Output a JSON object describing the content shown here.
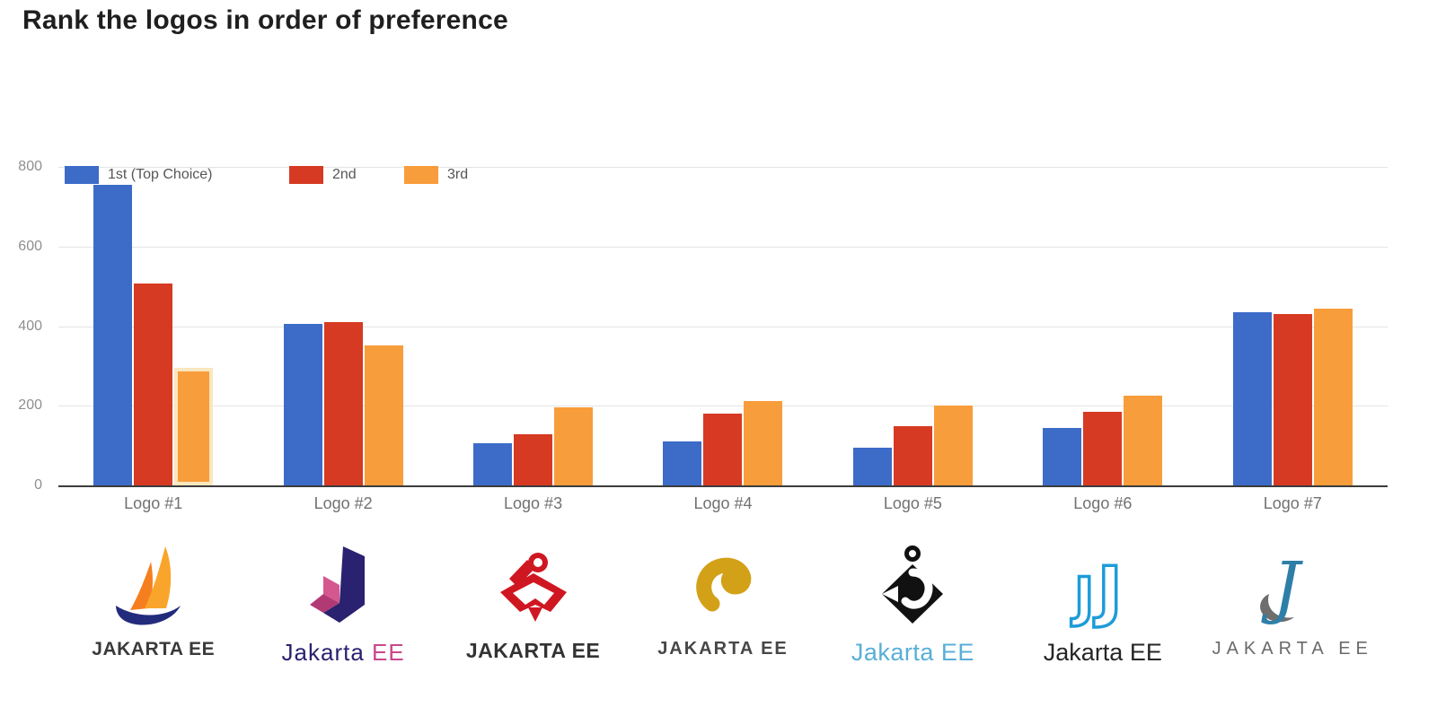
{
  "title": "Rank the logos in order of preference",
  "chart_data": {
    "type": "bar",
    "categories": [
      "Logo #1",
      "Logo #2",
      "Logo #3",
      "Logo #4",
      "Logo #5",
      "Logo #6",
      "Logo #7"
    ],
    "series": [
      {
        "name": "1st (Top Choice)",
        "color": "#3c6cc8",
        "values": [
          755,
          405,
          105,
          110,
          95,
          145,
          435
        ]
      },
      {
        "name": "2nd",
        "color": "#d63a22",
        "values": [
          508,
          410,
          128,
          180,
          148,
          185,
          430
        ]
      },
      {
        "name": "3rd",
        "color": "#f89d3b",
        "values": [
          295,
          352,
          195,
          212,
          200,
          225,
          443
        ]
      }
    ],
    "ylim": [
      0,
      800
    ],
    "yticks": [
      0,
      200,
      400,
      600,
      800
    ],
    "grid": true,
    "legend_position": "top-left-overlay",
    "highlight": {
      "category_index": 0,
      "series_index": 2,
      "border_color": "#f9e7be"
    }
  },
  "logos": [
    {
      "label": "Logo #1",
      "wordmark": "JAKARTA EE",
      "wordmark_color": "#3a3a3a",
      "icon": "sailboat",
      "colors": {
        "sail_light": "#f9a52b",
        "sail_dark": "#f57f1f",
        "hull": "#232c7c"
      }
    },
    {
      "label": "Logo #2",
      "wordmark": "Jakarta ",
      "wordmark2": "EE",
      "wordmark_color": "#2a2170",
      "wordmark2_color": "#c8488a",
      "icon": "angular-j",
      "colors": {
        "navy": "#2a2170",
        "pink": "#d5578f",
        "pink_dark": "#b23a74"
      }
    },
    {
      "label": "Logo #3",
      "wordmark": "JAKARTA EE",
      "wordmark_color": "#333333",
      "icon": "red-sextant",
      "colors": {
        "red": "#cf1722"
      }
    },
    {
      "label": "Logo #4",
      "wordmark": "JAKARTA EE",
      "wordmark_color": "#474747",
      "icon": "gold-comma-j",
      "colors": {
        "gold": "#d3a118"
      }
    },
    {
      "label": "Logo #5",
      "wordmark": "Jakarta EE",
      "wordmark_color": "#58afd7",
      "icon": "anchor-diamond",
      "colors": {
        "black": "#111111"
      }
    },
    {
      "label": "Logo #6",
      "wordmark": "Jakarta EE",
      "wordmark_color": "#262626",
      "icon": "double-j-outline",
      "colors": {
        "blue": "#1e9cd8"
      }
    },
    {
      "label": "Logo #7",
      "wordmark": "JAKARTA EE",
      "wordmark_color": "#6a6a6a",
      "icon": "script-j-swoosh",
      "colors": {
        "teal": "#2e7fa8",
        "gray": "#6e6e6e"
      }
    }
  ]
}
